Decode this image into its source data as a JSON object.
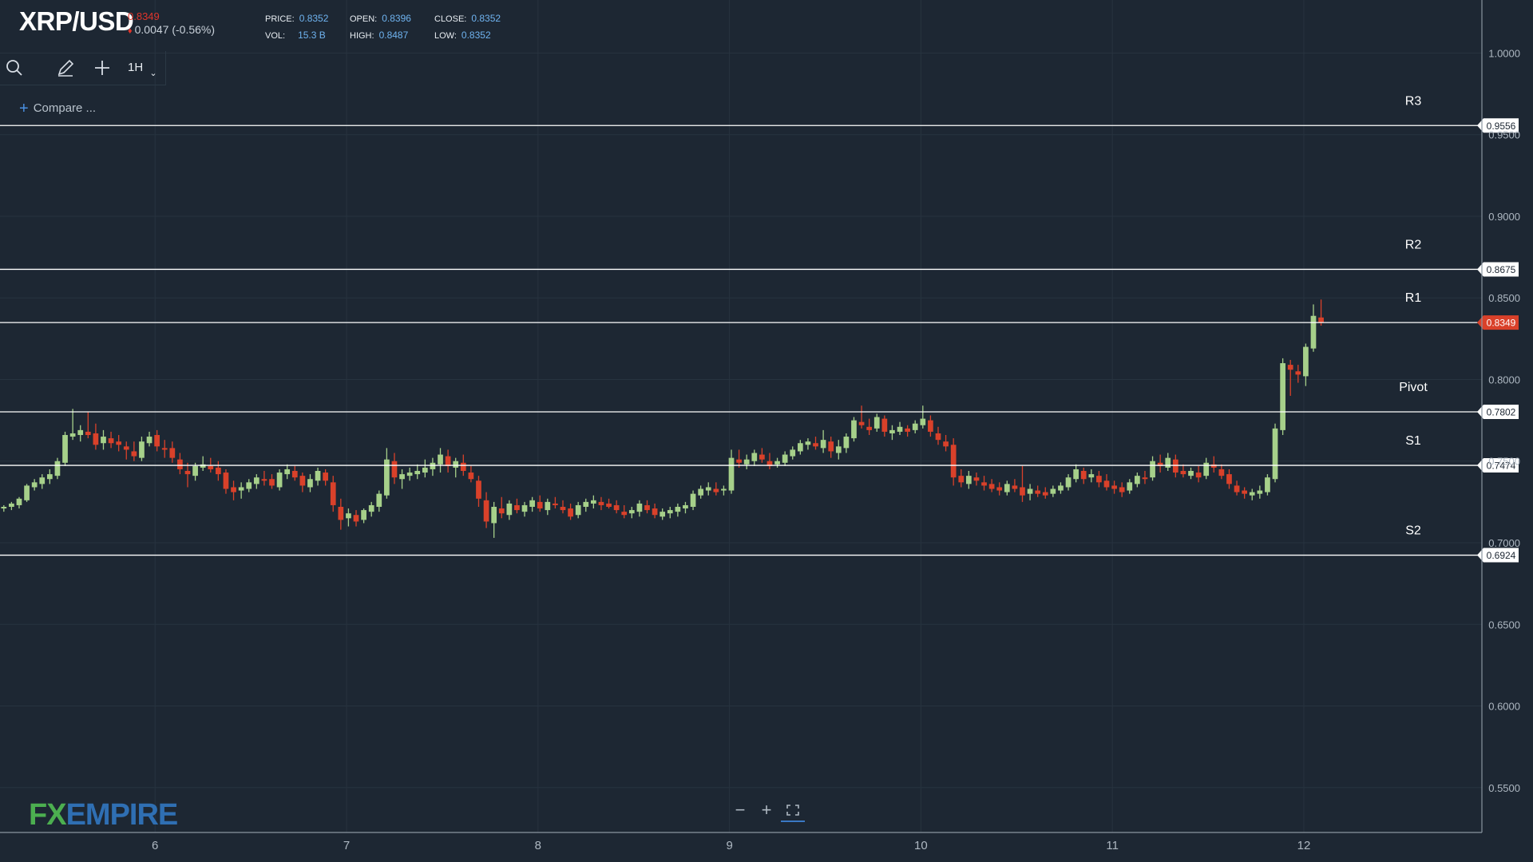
{
  "header": {
    "symbol": "XRP/USD",
    "last_price": "0.8349",
    "change": "0.0047 (-0.56%)",
    "stats": [
      {
        "label": "PRICE:",
        "value": "0.8352"
      },
      {
        "label": "OPEN:",
        "value": "0.8396"
      },
      {
        "label": "CLOSE:",
        "value": "0.8352"
      },
      {
        "label": "VOL:",
        "value": "15.3 B"
      },
      {
        "label": "HIGH:",
        "value": "0.8487"
      },
      {
        "label": "LOW:",
        "value": "0.8352"
      }
    ]
  },
  "toolbar": {
    "interval": "1H",
    "compare_label": "Compare ..."
  },
  "logo": {
    "fx": "FX",
    "empire": "EMPIRE"
  },
  "colors": {
    "background": "#1d2733",
    "grid": "#27333f",
    "bull": "#a6d08a",
    "bear": "#d9412a",
    "level_line": "#ffffff",
    "price_tag": "#d9412a"
  },
  "chart_data": {
    "type": "candlestick",
    "title": "XRP/USD",
    "x_ticks": [
      "6",
      "7",
      "8",
      "9",
      "10",
      "11",
      "12"
    ],
    "x_range": [
      5.19,
      12.93
    ],
    "y_ticks": [
      "1.0000",
      "0.9500",
      "0.9000",
      "0.8500",
      "0.8000",
      "0.7500",
      "0.7000",
      "0.6500",
      "0.6000",
      "0.5500"
    ],
    "y_range": [
      0.5225,
      1.0325
    ],
    "current_price": "0.8349",
    "levels": [
      {
        "name": "R3",
        "value": 0.9556,
        "tag": "0.9556"
      },
      {
        "name": "R2",
        "value": 0.8675,
        "tag": "0.8675"
      },
      {
        "name": "R1",
        "value": 0.8349,
        "tag": "0.8349"
      },
      {
        "name": "Pivot",
        "value": 0.7802,
        "tag": "0.7802"
      },
      {
        "name": "S1",
        "value": 0.7474,
        "tag": "0.7474"
      },
      {
        "name": "S2",
        "value": 0.6924,
        "tag": "0.6924"
      }
    ],
    "candle_width_days": 0.028,
    "candles": [
      [
        5.21,
        0.721,
        0.723,
        0.719,
        0.722
      ],
      [
        5.25,
        0.722,
        0.725,
        0.72,
        0.724
      ],
      [
        5.29,
        0.723,
        0.728,
        0.721,
        0.727
      ],
      [
        5.33,
        0.726,
        0.736,
        0.725,
        0.735
      ],
      [
        5.37,
        0.734,
        0.739,
        0.732,
        0.737
      ],
      [
        5.41,
        0.736,
        0.742,
        0.733,
        0.74
      ],
      [
        5.45,
        0.739,
        0.745,
        0.736,
        0.742
      ],
      [
        5.49,
        0.741,
        0.752,
        0.739,
        0.75
      ],
      [
        5.53,
        0.749,
        0.768,
        0.747,
        0.766
      ],
      [
        5.57,
        0.765,
        0.782,
        0.763,
        0.767
      ],
      [
        5.61,
        0.766,
        0.772,
        0.762,
        0.769
      ],
      [
        5.65,
        0.768,
        0.78,
        0.764,
        0.766
      ],
      [
        5.69,
        0.767,
        0.773,
        0.757,
        0.76
      ],
      [
        5.73,
        0.761,
        0.769,
        0.757,
        0.765
      ],
      [
        5.77,
        0.764,
        0.768,
        0.758,
        0.761
      ],
      [
        5.81,
        0.762,
        0.766,
        0.756,
        0.76
      ],
      [
        5.85,
        0.759,
        0.762,
        0.751,
        0.757
      ],
      [
        5.89,
        0.756,
        0.762,
        0.75,
        0.753
      ],
      [
        5.93,
        0.752,
        0.765,
        0.75,
        0.762
      ],
      [
        5.97,
        0.761,
        0.768,
        0.759,
        0.765
      ],
      [
        6.01,
        0.766,
        0.769,
        0.756,
        0.759
      ],
      [
        6.05,
        0.758,
        0.763,
        0.752,
        0.757
      ],
      [
        6.09,
        0.758,
        0.762,
        0.749,
        0.752
      ],
      [
        6.13,
        0.751,
        0.755,
        0.742,
        0.745
      ],
      [
        6.17,
        0.744,
        0.749,
        0.734,
        0.742
      ],
      [
        6.21,
        0.741,
        0.749,
        0.738,
        0.747
      ],
      [
        6.25,
        0.746,
        0.753,
        0.744,
        0.748
      ],
      [
        6.29,
        0.747,
        0.752,
        0.743,
        0.745
      ],
      [
        6.33,
        0.746,
        0.75,
        0.738,
        0.742
      ],
      [
        6.37,
        0.743,
        0.745,
        0.73,
        0.733
      ],
      [
        6.41,
        0.734,
        0.738,
        0.726,
        0.731
      ],
      [
        6.45,
        0.732,
        0.737,
        0.727,
        0.734
      ],
      [
        6.49,
        0.733,
        0.739,
        0.731,
        0.737
      ],
      [
        6.53,
        0.736,
        0.742,
        0.733,
        0.74
      ],
      [
        6.57,
        0.739,
        0.744,
        0.735,
        0.738
      ],
      [
        6.61,
        0.739,
        0.742,
        0.733,
        0.735
      ],
      [
        6.65,
        0.734,
        0.745,
        0.732,
        0.743
      ],
      [
        6.69,
        0.742,
        0.748,
        0.739,
        0.745
      ],
      [
        6.73,
        0.744,
        0.747,
        0.738,
        0.74
      ],
      [
        6.77,
        0.741,
        0.743,
        0.731,
        0.735
      ],
      [
        6.81,
        0.734,
        0.742,
        0.731,
        0.739
      ],
      [
        6.85,
        0.738,
        0.746,
        0.735,
        0.744
      ],
      [
        6.89,
        0.743,
        0.745,
        0.735,
        0.738
      ],
      [
        6.93,
        0.737,
        0.741,
        0.719,
        0.723
      ],
      [
        6.97,
        0.722,
        0.727,
        0.708,
        0.714
      ],
      [
        7.01,
        0.715,
        0.721,
        0.71,
        0.718
      ],
      [
        7.05,
        0.717,
        0.72,
        0.71,
        0.713
      ],
      [
        7.09,
        0.714,
        0.721,
        0.712,
        0.72
      ],
      [
        7.13,
        0.719,
        0.725,
        0.716,
        0.723
      ],
      [
        7.17,
        0.722,
        0.732,
        0.719,
        0.73
      ],
      [
        7.21,
        0.729,
        0.758,
        0.727,
        0.751
      ],
      [
        7.25,
        0.75,
        0.755,
        0.736,
        0.74
      ],
      [
        7.29,
        0.739,
        0.745,
        0.733,
        0.742
      ],
      [
        7.33,
        0.741,
        0.746,
        0.738,
        0.743
      ],
      [
        7.37,
        0.742,
        0.748,
        0.739,
        0.744
      ],
      [
        7.41,
        0.743,
        0.751,
        0.74,
        0.746
      ],
      [
        7.45,
        0.745,
        0.752,
        0.741,
        0.749
      ],
      [
        7.49,
        0.748,
        0.758,
        0.743,
        0.754
      ],
      [
        7.53,
        0.753,
        0.757,
        0.743,
        0.747
      ],
      [
        7.57,
        0.746,
        0.752,
        0.74,
        0.75
      ],
      [
        7.61,
        0.749,
        0.754,
        0.741,
        0.744
      ],
      [
        7.65,
        0.743,
        0.747,
        0.737,
        0.739
      ],
      [
        7.69,
        0.738,
        0.741,
        0.722,
        0.727
      ],
      [
        7.73,
        0.726,
        0.731,
        0.709,
        0.713
      ],
      [
        7.77,
        0.712,
        0.725,
        0.703,
        0.722
      ],
      [
        7.81,
        0.721,
        0.728,
        0.715,
        0.718
      ],
      [
        7.85,
        0.717,
        0.726,
        0.714,
        0.724
      ],
      [
        7.89,
        0.723,
        0.727,
        0.718,
        0.72
      ],
      [
        7.93,
        0.719,
        0.725,
        0.716,
        0.723
      ],
      [
        7.97,
        0.722,
        0.728,
        0.719,
        0.726
      ],
      [
        8.01,
        0.725,
        0.729,
        0.719,
        0.721
      ],
      [
        8.05,
        0.72,
        0.727,
        0.717,
        0.725
      ],
      [
        8.09,
        0.724,
        0.728,
        0.721,
        0.723
      ],
      [
        8.13,
        0.722,
        0.726,
        0.718,
        0.72
      ],
      [
        8.17,
        0.721,
        0.724,
        0.714,
        0.716
      ],
      [
        8.21,
        0.717,
        0.725,
        0.715,
        0.723
      ],
      [
        8.25,
        0.722,
        0.727,
        0.719,
        0.725
      ],
      [
        8.29,
        0.724,
        0.729,
        0.721,
        0.726
      ],
      [
        8.33,
        0.725,
        0.728,
        0.72,
        0.723
      ],
      [
        8.37,
        0.724,
        0.727,
        0.721,
        0.722
      ],
      [
        8.41,
        0.723,
        0.726,
        0.718,
        0.72
      ],
      [
        8.45,
        0.719,
        0.723,
        0.715,
        0.717
      ],
      [
        8.49,
        0.718,
        0.722,
        0.715,
        0.72
      ],
      [
        8.53,
        0.719,
        0.726,
        0.716,
        0.724
      ],
      [
        8.57,
        0.723,
        0.726,
        0.718,
        0.72
      ],
      [
        8.61,
        0.721,
        0.724,
        0.715,
        0.717
      ],
      [
        8.65,
        0.716,
        0.721,
        0.714,
        0.719
      ],
      [
        8.69,
        0.718,
        0.722,
        0.715,
        0.72
      ],
      [
        8.73,
        0.719,
        0.724,
        0.716,
        0.722
      ],
      [
        8.77,
        0.721,
        0.725,
        0.718,
        0.723
      ],
      [
        8.81,
        0.722,
        0.732,
        0.72,
        0.73
      ],
      [
        8.85,
        0.729,
        0.735,
        0.727,
        0.733
      ],
      [
        8.89,
        0.732,
        0.737,
        0.729,
        0.734
      ],
      [
        8.93,
        0.733,
        0.737,
        0.729,
        0.731
      ],
      [
        8.97,
        0.732,
        0.735,
        0.729,
        0.733
      ],
      [
        9.01,
        0.732,
        0.757,
        0.73,
        0.752
      ],
      [
        9.05,
        0.751,
        0.757,
        0.746,
        0.749
      ],
      [
        9.09,
        0.748,
        0.754,
        0.745,
        0.751
      ],
      [
        9.13,
        0.75,
        0.757,
        0.747,
        0.755
      ],
      [
        9.17,
        0.754,
        0.758,
        0.749,
        0.751
      ],
      [
        9.21,
        0.75,
        0.755,
        0.745,
        0.747
      ],
      [
        9.25,
        0.748,
        0.752,
        0.746,
        0.75
      ],
      [
        9.29,
        0.749,
        0.756,
        0.747,
        0.754
      ],
      [
        9.33,
        0.753,
        0.759,
        0.751,
        0.757
      ],
      [
        9.37,
        0.756,
        0.763,
        0.754,
        0.761
      ],
      [
        9.41,
        0.76,
        0.764,
        0.757,
        0.762
      ],
      [
        9.45,
        0.761,
        0.765,
        0.757,
        0.759
      ],
      [
        9.49,
        0.758,
        0.769,
        0.755,
        0.763
      ],
      [
        9.53,
        0.762,
        0.765,
        0.752,
        0.756
      ],
      [
        9.57,
        0.755,
        0.763,
        0.751,
        0.759
      ],
      [
        9.61,
        0.758,
        0.767,
        0.755,
        0.765
      ],
      [
        9.65,
        0.764,
        0.777,
        0.762,
        0.775
      ],
      [
        9.69,
        0.774,
        0.784,
        0.77,
        0.772
      ],
      [
        9.73,
        0.771,
        0.776,
        0.766,
        0.769
      ],
      [
        9.77,
        0.77,
        0.779,
        0.768,
        0.777
      ],
      [
        9.81,
        0.776,
        0.778,
        0.765,
        0.768
      ],
      [
        9.85,
        0.767,
        0.772,
        0.763,
        0.769
      ],
      [
        9.89,
        0.768,
        0.774,
        0.766,
        0.771
      ],
      [
        9.93,
        0.77,
        0.772,
        0.765,
        0.768
      ],
      [
        9.97,
        0.769,
        0.775,
        0.767,
        0.773
      ],
      [
        10.01,
        0.772,
        0.784,
        0.77,
        0.776
      ],
      [
        10.05,
        0.775,
        0.778,
        0.765,
        0.768
      ],
      [
        10.09,
        0.767,
        0.771,
        0.76,
        0.763
      ],
      [
        10.13,
        0.762,
        0.766,
        0.756,
        0.759
      ],
      [
        10.17,
        0.76,
        0.764,
        0.735,
        0.74
      ],
      [
        10.21,
        0.741,
        0.745,
        0.734,
        0.737
      ],
      [
        10.25,
        0.736,
        0.744,
        0.733,
        0.741
      ],
      [
        10.29,
        0.74,
        0.743,
        0.735,
        0.738
      ],
      [
        10.33,
        0.737,
        0.741,
        0.732,
        0.735
      ],
      [
        10.37,
        0.736,
        0.739,
        0.731,
        0.733
      ],
      [
        10.41,
        0.734,
        0.737,
        0.729,
        0.732
      ],
      [
        10.45,
        0.731,
        0.738,
        0.729,
        0.736
      ],
      [
        10.49,
        0.735,
        0.739,
        0.731,
        0.733
      ],
      [
        10.53,
        0.734,
        0.747,
        0.725,
        0.729
      ],
      [
        10.57,
        0.73,
        0.736,
        0.726,
        0.733
      ],
      [
        10.61,
        0.732,
        0.735,
        0.728,
        0.73
      ],
      [
        10.65,
        0.731,
        0.734,
        0.727,
        0.729
      ],
      [
        10.69,
        0.73,
        0.735,
        0.728,
        0.733
      ],
      [
        10.73,
        0.732,
        0.737,
        0.73,
        0.735
      ],
      [
        10.77,
        0.734,
        0.742,
        0.732,
        0.74
      ],
      [
        10.81,
        0.739,
        0.748,
        0.737,
        0.745
      ],
      [
        10.85,
        0.744,
        0.746,
        0.736,
        0.739
      ],
      [
        10.89,
        0.74,
        0.745,
        0.737,
        0.742
      ],
      [
        10.93,
        0.741,
        0.744,
        0.734,
        0.737
      ],
      [
        10.97,
        0.738,
        0.742,
        0.732,
        0.734
      ],
      [
        11.01,
        0.735,
        0.738,
        0.73,
        0.733
      ],
      [
        11.05,
        0.734,
        0.737,
        0.728,
        0.731
      ],
      [
        11.09,
        0.732,
        0.739,
        0.73,
        0.737
      ],
      [
        11.13,
        0.736,
        0.743,
        0.734,
        0.741
      ],
      [
        11.17,
        0.74,
        0.744,
        0.736,
        0.739
      ],
      [
        11.21,
        0.74,
        0.753,
        0.738,
        0.75
      ],
      [
        11.25,
        0.749,
        0.754,
        0.743,
        0.747
      ],
      [
        11.29,
        0.746,
        0.755,
        0.744,
        0.752
      ],
      [
        11.33,
        0.751,
        0.754,
        0.74,
        0.743
      ],
      [
        11.37,
        0.744,
        0.748,
        0.74,
        0.742
      ],
      [
        11.41,
        0.741,
        0.746,
        0.739,
        0.744
      ],
      [
        11.45,
        0.743,
        0.747,
        0.737,
        0.74
      ],
      [
        11.49,
        0.741,
        0.752,
        0.739,
        0.749
      ],
      [
        11.53,
        0.748,
        0.753,
        0.743,
        0.746
      ],
      [
        11.57,
        0.745,
        0.748,
        0.739,
        0.741
      ],
      [
        11.61,
        0.742,
        0.745,
        0.733,
        0.736
      ],
      [
        11.65,
        0.735,
        0.738,
        0.729,
        0.731
      ],
      [
        11.69,
        0.732,
        0.734,
        0.727,
        0.73
      ],
      [
        11.73,
        0.729,
        0.733,
        0.726,
        0.731
      ],
      [
        11.77,
        0.73,
        0.735,
        0.727,
        0.732
      ],
      [
        11.81,
        0.731,
        0.742,
        0.729,
        0.74
      ],
      [
        11.85,
        0.739,
        0.773,
        0.737,
        0.77
      ],
      [
        11.89,
        0.769,
        0.813,
        0.766,
        0.81
      ],
      [
        11.93,
        0.809,
        0.812,
        0.79,
        0.806
      ],
      [
        11.97,
        0.805,
        0.809,
        0.798,
        0.803
      ],
      [
        12.01,
        0.802,
        0.822,
        0.796,
        0.82
      ],
      [
        12.05,
        0.819,
        0.846,
        0.817,
        0.839
      ],
      [
        12.09,
        0.838,
        0.849,
        0.833,
        0.835
      ]
    ]
  }
}
